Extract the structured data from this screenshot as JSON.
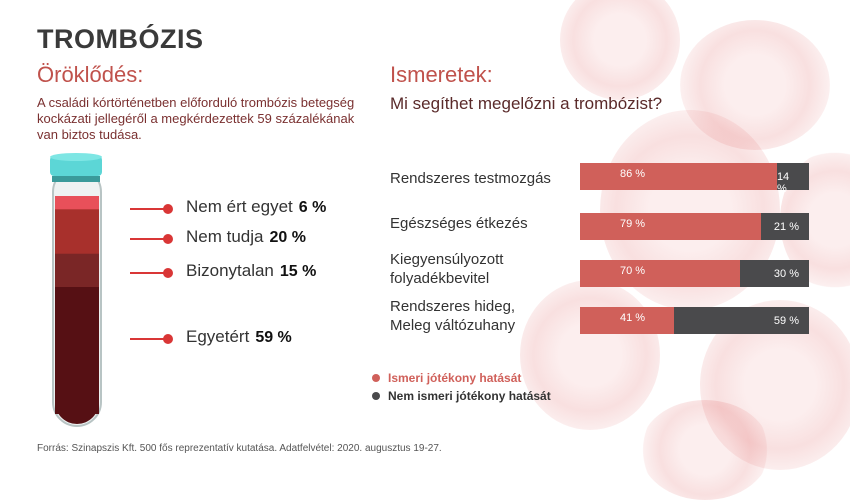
{
  "title": "TROMBÓZIS",
  "left": {
    "heading": "Öröklődés:",
    "description": "A családi kórtörténetben előforduló trombózis betegség kockázati jellegéről a megkérdezettek 59 százalékának van biztos tudása.",
    "items": [
      {
        "label": "Nem ért egyet",
        "value": "6 %"
      },
      {
        "label": "Nem tudja",
        "value": "20 %"
      },
      {
        "label": "Bizonytalan",
        "value": "15 %"
      },
      {
        "label": "Egyetért",
        "value": "59 %"
      }
    ]
  },
  "right": {
    "heading": "Ismeretek:",
    "question": "Mi segíthet megelőzni a trombózist?"
  },
  "chart_data": {
    "type": "bar",
    "stacked": true,
    "orientation": "horizontal",
    "categories": [
      "Rendszeres testmozgás",
      "Egészséges étkezés",
      "Kiegyensúlyozott folyadékbevitel",
      "Rendszeres hideg, Meleg váltózuhany"
    ],
    "series": [
      {
        "name": "Ismeri jótékony hatását",
        "values": [
          86,
          79,
          70,
          41
        ],
        "labels": [
          "86 %",
          "79 %",
          "70 %",
          "41 %"
        ],
        "color": "#d0605a"
      },
      {
        "name": "Nem ismeri jótékony hatását",
        "values": [
          14,
          21,
          30,
          59
        ],
        "labels": [
          "14 %",
          "21 %",
          "30 %",
          "59 %"
        ],
        "color": "#4a4a4c"
      }
    ],
    "xlim": [
      0,
      100
    ],
    "legend": "bottom-left"
  },
  "tube_data": {
    "type": "stacked",
    "values": [
      6,
      20,
      15,
      59
    ]
  },
  "source": "Forrás: Szinapszis Kft. 500 fős reprezentatív kutatása. Adatfelvétel: 2020. augusztus 19-27."
}
